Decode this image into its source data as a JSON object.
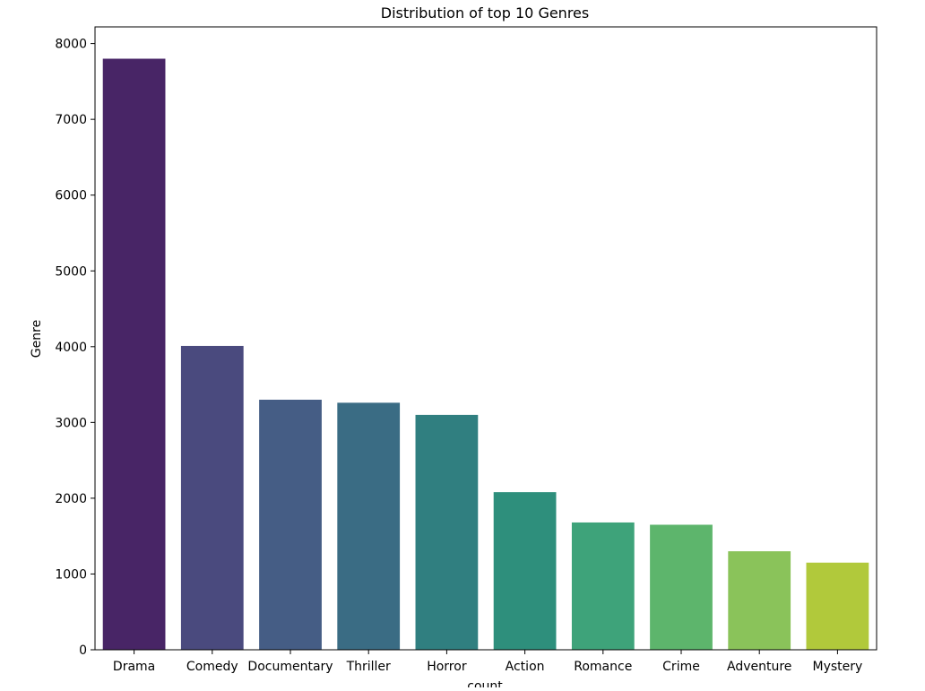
{
  "chart_data": {
    "type": "bar",
    "title": "Distribution of top 10 Genres",
    "xlabel": "count",
    "ylabel": "Genre",
    "categories": [
      "Drama",
      "Comedy",
      "Documentary",
      "Thriller",
      "Horror",
      "Action",
      "Romance",
      "Crime",
      "Adventure",
      "Mystery"
    ],
    "values": [
      7800,
      4010,
      3300,
      3260,
      3100,
      2080,
      1680,
      1650,
      1300,
      1150
    ],
    "ylim": [
      0,
      8220
    ],
    "yticks": [
      0,
      1000,
      2000,
      3000,
      4000,
      5000,
      6000,
      7000,
      8000
    ],
    "colors": [
      "#482566",
      "#4a4a7e",
      "#455d85",
      "#3a6c84",
      "#307f80",
      "#2e8f7c",
      "#3ea37a",
      "#5db56c",
      "#8ac35a",
      "#b1c93b"
    ],
    "grid": false,
    "legend": "none"
  }
}
